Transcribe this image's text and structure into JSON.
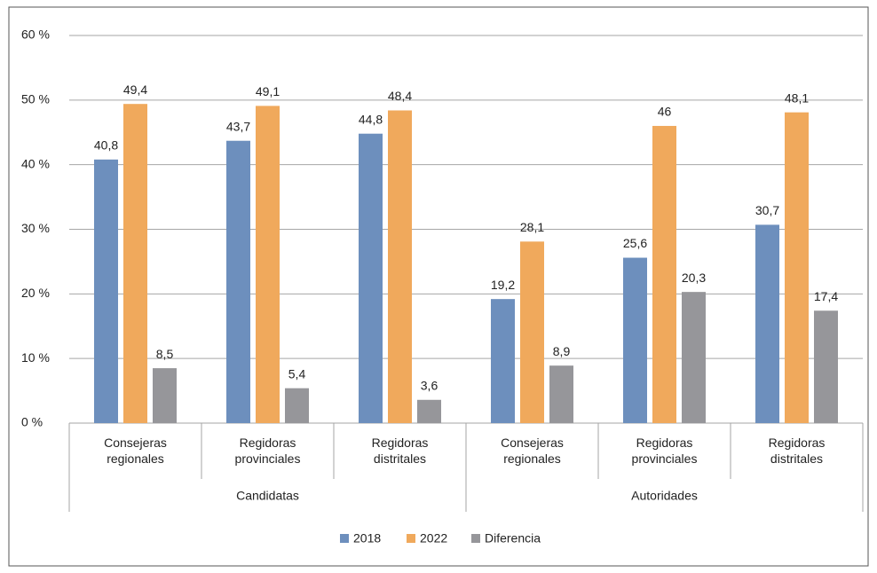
{
  "chart_data": {
    "type": "bar",
    "groups": [
      "Candidatas",
      "Autoridades"
    ],
    "categories": [
      "Consejeras regionales",
      "Regidoras provinciales",
      "Regidoras distritales",
      "Consejeras regionales",
      "Regidoras provinciales",
      "Regidoras distritales"
    ],
    "series": [
      {
        "name": "2018",
        "color": "#6d8fbd",
        "values": [
          40.8,
          43.7,
          44.8,
          19.2,
          25.6,
          30.7
        ],
        "value_labels": [
          "40,8",
          "43,7",
          "44,8",
          "19,2",
          "25,6",
          "30,7"
        ]
      },
      {
        "name": "2022",
        "color": "#f0a95c",
        "values": [
          49.4,
          49.1,
          48.4,
          28.1,
          46,
          48.1
        ],
        "value_labels": [
          "49,4",
          "49,1",
          "48,4",
          "28,1",
          "46",
          "48,1"
        ]
      },
      {
        "name": "Diferencia",
        "color": "#96969a",
        "values": [
          8.5,
          5.4,
          3.6,
          8.9,
          20.3,
          17.4
        ],
        "value_labels": [
          "8,5",
          "5,4",
          "3,6",
          "8,9",
          "20,3",
          "17,4"
        ]
      }
    ],
    "ylim": [
      0,
      60
    ],
    "yticks": [
      {
        "value": 0,
        "label": "0 %"
      },
      {
        "value": 10,
        "label": "10 %"
      },
      {
        "value": 20,
        "label": "20 %"
      },
      {
        "value": 30,
        "label": "30 %"
      },
      {
        "value": 40,
        "label": "40 %"
      },
      {
        "value": 50,
        "label": "50 %"
      },
      {
        "value": 60,
        "label": "60 %"
      }
    ],
    "grid": true,
    "legend": "bottom"
  }
}
